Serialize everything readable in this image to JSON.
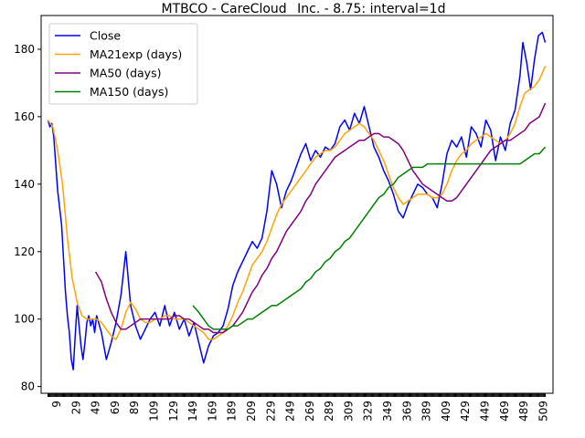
{
  "chart_data": {
    "type": "line",
    "title": "MTBCO - CareCloud_ Inc. - 8.75: interval=1d",
    "xlabel": "",
    "ylabel": "",
    "xlim": [
      -7,
      519
    ],
    "ylim": [
      78,
      190
    ],
    "grid": false,
    "legend_position": "upper-left",
    "x_ticks": [
      9,
      29,
      49,
      69,
      89,
      109,
      129,
      149,
      169,
      189,
      209,
      229,
      249,
      269,
      289,
      309,
      329,
      349,
      369,
      389,
      409,
      429,
      449,
      469,
      489,
      509
    ],
    "y_ticks": [
      80,
      100,
      120,
      140,
      160,
      180
    ],
    "series": [
      {
        "name": "Close",
        "color": "#0000ff",
        "x": [
          0,
          2,
          4,
          6,
          8,
          10,
          12,
          14,
          16,
          18,
          20,
          22,
          24,
          26,
          28,
          30,
          32,
          34,
          36,
          38,
          40,
          42,
          44,
          46,
          48,
          50,
          55,
          60,
          65,
          70,
          75,
          80,
          85,
          90,
          95,
          100,
          105,
          110,
          115,
          120,
          125,
          130,
          135,
          140,
          145,
          150,
          155,
          160,
          165,
          170,
          175,
          180,
          185,
          190,
          195,
          200,
          205,
          210,
          215,
          220,
          225,
          230,
          235,
          240,
          245,
          250,
          255,
          260,
          265,
          270,
          275,
          280,
          285,
          290,
          295,
          300,
          305,
          310,
          315,
          320,
          325,
          330,
          335,
          340,
          345,
          350,
          355,
          360,
          365,
          370,
          375,
          380,
          385,
          390,
          395,
          400,
          405,
          410,
          415,
          420,
          425,
          430,
          435,
          440,
          445,
          450,
          455,
          460,
          465,
          470,
          475,
          480,
          485,
          488,
          492,
          496,
          500,
          504,
          508,
          511
        ],
        "values": [
          159,
          157,
          158,
          154,
          146,
          138,
          133,
          128,
          118,
          108,
          101,
          96,
          88,
          85,
          95,
          104,
          98,
          92,
          88,
          93,
          99,
          101,
          98,
          100,
          96,
          101,
          96,
          88,
          93,
          99,
          107,
          120,
          104,
          98,
          94,
          97,
          100,
          102,
          98,
          104,
          98,
          102,
          97,
          100,
          95,
          99,
          93,
          87,
          92,
          95,
          96,
          98,
          103,
          110,
          114,
          117,
          120,
          123,
          121,
          124,
          132,
          144,
          140,
          133,
          138,
          141,
          145,
          149,
          152,
          147,
          150,
          148,
          151,
          150,
          152,
          157,
          159,
          156,
          161,
          158,
          163,
          157,
          151,
          148,
          144,
          141,
          137,
          132,
          130,
          134,
          137,
          140,
          139,
          137,
          136,
          133,
          140,
          149,
          153,
          151,
          154,
          148,
          157,
          155,
          151,
          159,
          156,
          147,
          154,
          150,
          158,
          162,
          172,
          182,
          176,
          168,
          177,
          184,
          185,
          182
        ]
      },
      {
        "name": "MA21exp (days)",
        "color": "#ffa500",
        "x": [
          0,
          5,
          10,
          15,
          20,
          25,
          30,
          35,
          40,
          45,
          50,
          55,
          60,
          65,
          70,
          75,
          80,
          85,
          90,
          95,
          100,
          105,
          110,
          115,
          120,
          125,
          130,
          135,
          140,
          145,
          150,
          155,
          160,
          165,
          170,
          175,
          180,
          185,
          190,
          195,
          200,
          205,
          210,
          215,
          220,
          225,
          230,
          235,
          240,
          245,
          250,
          255,
          260,
          265,
          270,
          275,
          280,
          285,
          290,
          295,
          300,
          305,
          310,
          315,
          320,
          325,
          330,
          335,
          340,
          345,
          350,
          355,
          360,
          365,
          370,
          375,
          380,
          385,
          390,
          395,
          400,
          405,
          410,
          415,
          420,
          425,
          430,
          435,
          440,
          445,
          450,
          455,
          460,
          465,
          470,
          475,
          480,
          485,
          490,
          495,
          500,
          505,
          511
        ],
        "values": [
          159,
          157,
          150,
          140,
          124,
          112,
          105,
          101,
          100,
          100,
          100,
          99,
          97,
          95,
          94,
          97,
          102,
          105,
          103,
          100,
          99,
          99,
          100,
          100,
          101,
          101,
          100,
          100,
          100,
          99,
          98,
          97,
          96,
          94,
          94,
          95,
          96,
          98,
          101,
          105,
          108,
          112,
          116,
          118,
          120,
          123,
          127,
          131,
          134,
          136,
          138,
          140,
          142,
          144,
          146,
          148,
          149,
          150,
          150,
          151,
          153,
          155,
          156,
          157,
          158,
          157,
          155,
          153,
          150,
          147,
          143,
          139,
          136,
          134,
          135,
          136,
          137,
          137,
          137,
          136,
          136,
          137,
          140,
          144,
          147,
          149,
          150,
          152,
          153,
          154,
          155,
          154,
          153,
          152,
          153,
          155,
          158,
          163,
          167,
          168,
          169,
          171,
          175
        ]
      },
      {
        "name": "MA50 (days)",
        "color": "#800080",
        "x": [
          49,
          55,
          60,
          65,
          70,
          75,
          80,
          85,
          90,
          95,
          100,
          105,
          110,
          115,
          120,
          125,
          130,
          135,
          140,
          145,
          150,
          155,
          160,
          165,
          170,
          175,
          180,
          185,
          190,
          195,
          200,
          205,
          210,
          215,
          220,
          225,
          230,
          235,
          240,
          245,
          250,
          255,
          260,
          265,
          270,
          275,
          280,
          285,
          290,
          295,
          300,
          305,
          310,
          315,
          320,
          325,
          330,
          335,
          340,
          345,
          350,
          355,
          360,
          365,
          370,
          375,
          380,
          385,
          390,
          395,
          400,
          405,
          410,
          415,
          420,
          425,
          430,
          435,
          440,
          445,
          450,
          455,
          460,
          465,
          470,
          475,
          480,
          485,
          490,
          495,
          500,
          505,
          511
        ],
        "values": [
          114,
          111,
          106,
          102,
          99,
          97,
          97,
          98,
          99,
          100,
          100,
          100,
          100,
          100,
          100,
          100,
          101,
          101,
          100,
          100,
          99,
          98,
          97,
          97,
          96,
          96,
          96,
          97,
          98,
          100,
          102,
          105,
          108,
          110,
          113,
          115,
          118,
          120,
          123,
          126,
          128,
          130,
          132,
          135,
          137,
          140,
          142,
          144,
          146,
          148,
          149,
          150,
          151,
          152,
          153,
          153,
          154,
          155,
          155,
          154,
          154,
          153,
          152,
          150,
          147,
          144,
          142,
          140,
          139,
          138,
          137,
          136,
          135,
          135,
          136,
          138,
          140,
          142,
          144,
          146,
          148,
          150,
          151,
          152,
          153,
          153,
          154,
          155,
          156,
          158,
          159,
          160,
          164
        ]
      },
      {
        "name": "MA150 (days)",
        "color": "#008000",
        "x": [
          149,
          155,
          160,
          165,
          170,
          175,
          180,
          185,
          190,
          195,
          200,
          205,
          210,
          215,
          220,
          225,
          230,
          235,
          240,
          245,
          250,
          255,
          260,
          265,
          270,
          275,
          280,
          285,
          290,
          295,
          300,
          305,
          310,
          315,
          320,
          325,
          330,
          335,
          340,
          345,
          350,
          355,
          360,
          365,
          370,
          375,
          380,
          385,
          390,
          395,
          400,
          405,
          410,
          415,
          420,
          425,
          430,
          435,
          440,
          445,
          450,
          455,
          460,
          465,
          470,
          475,
          480,
          485,
          490,
          495,
          500,
          505,
          511
        ],
        "values": [
          104,
          102,
          100,
          98,
          97,
          97,
          97,
          97,
          98,
          98,
          99,
          100,
          100,
          101,
          102,
          103,
          104,
          104,
          105,
          106,
          107,
          108,
          109,
          111,
          112,
          114,
          115,
          117,
          118,
          120,
          121,
          123,
          124,
          126,
          128,
          130,
          132,
          134,
          136,
          137,
          139,
          140,
          142,
          143,
          144,
          145,
          145,
          145,
          146,
          146,
          146,
          146,
          146,
          146,
          146,
          146,
          146,
          146,
          146,
          146,
          146,
          146,
          146,
          146,
          146,
          146,
          146,
          146,
          147,
          148,
          149,
          149,
          151
        ]
      }
    ]
  }
}
